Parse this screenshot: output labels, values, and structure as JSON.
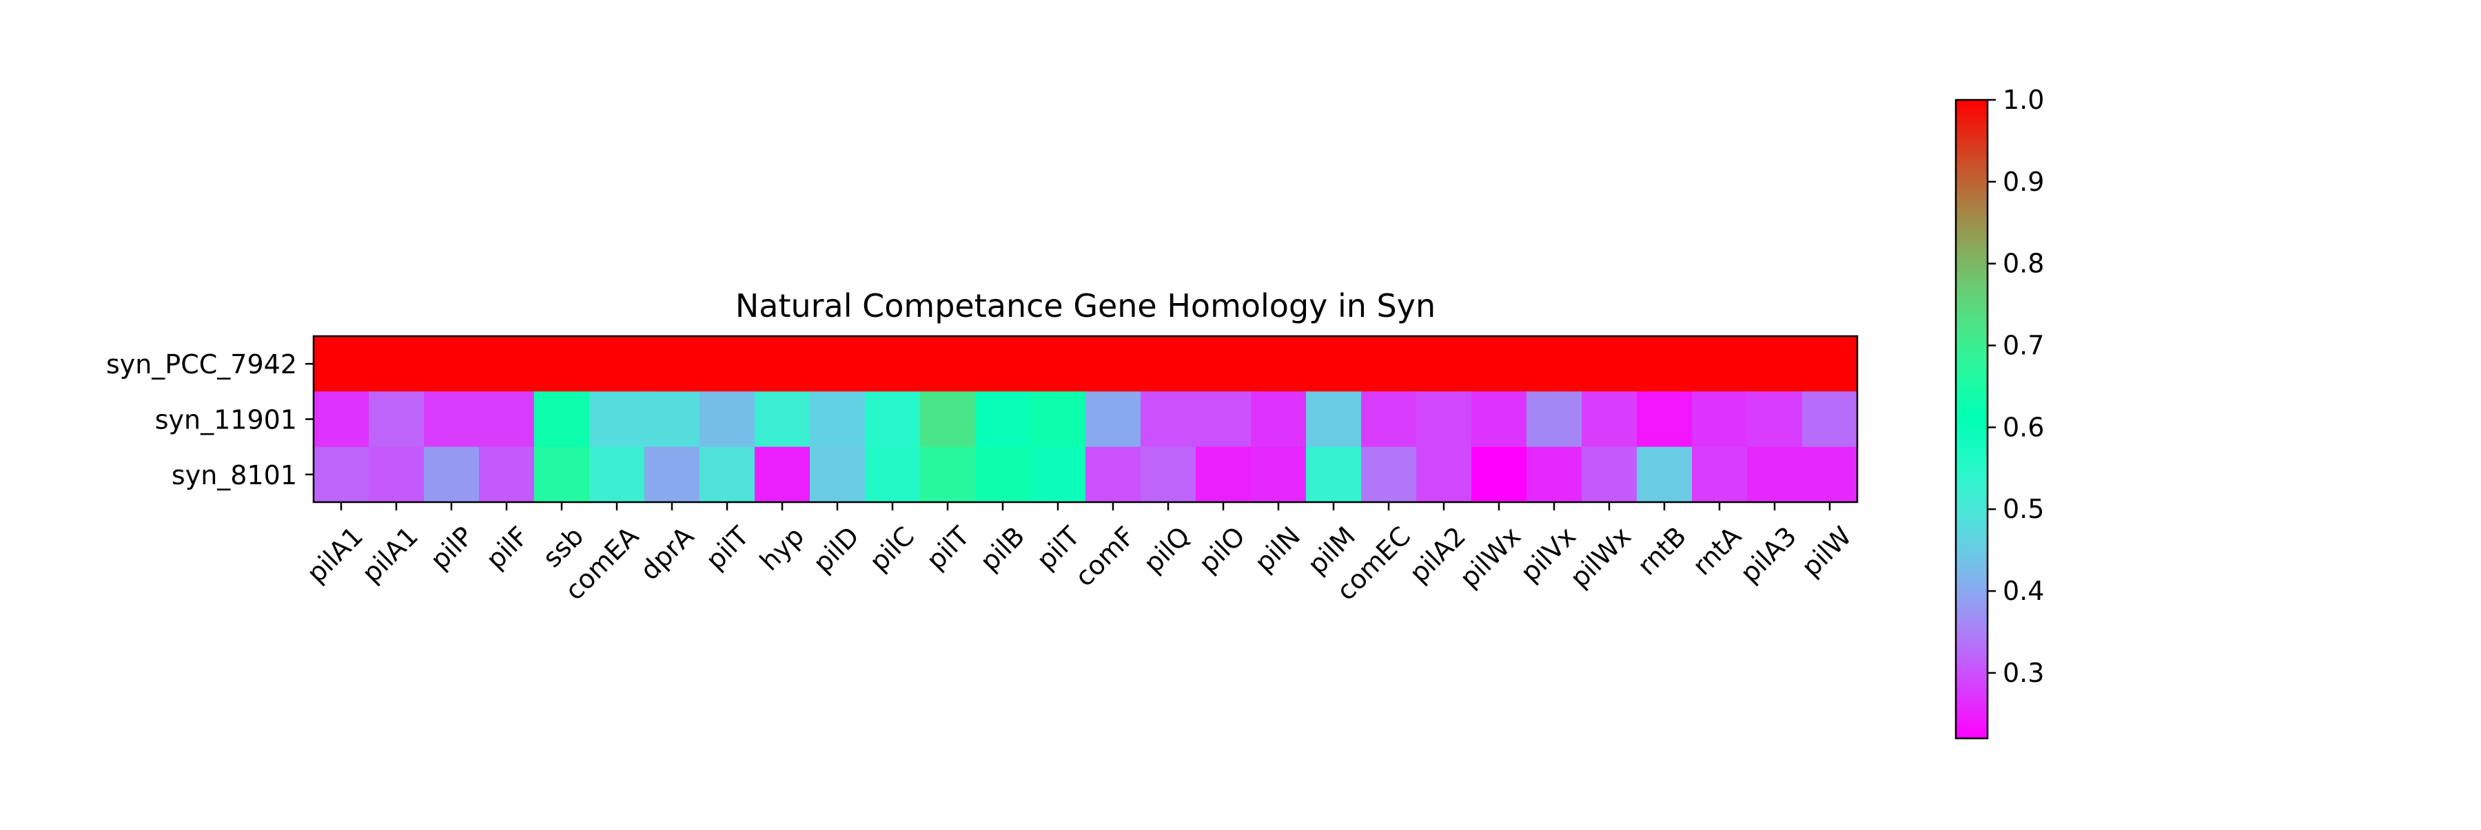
{
  "chart_data": {
    "type": "heatmap",
    "title": "Natural Competance Gene Homology in Syn",
    "xlabel": "",
    "ylabel": "",
    "rows": [
      "syn_PCC_7942",
      "syn_11901",
      "syn_8101"
    ],
    "columns": [
      "pilA1",
      "pilA1",
      "pilP",
      "pilF",
      "ssb",
      "comEA",
      "dprA",
      "pilT",
      "hyp",
      "pilD",
      "pilC",
      "pilT",
      "pilB",
      "pilT",
      "comF",
      "pilQ",
      "pilO",
      "pilN",
      "pilM",
      "comEC",
      "pilA2",
      "pilWx",
      "pilVx",
      "pilWx",
      "rntB",
      "rntA",
      "pilA3",
      "pilW"
    ],
    "values": [
      [
        1.0,
        1.0,
        1.0,
        1.0,
        1.0,
        1.0,
        1.0,
        1.0,
        1.0,
        1.0,
        1.0,
        1.0,
        1.0,
        1.0,
        1.0,
        1.0,
        1.0,
        1.0,
        1.0,
        1.0,
        1.0,
        1.0,
        1.0,
        1.0,
        1.0,
        1.0,
        1.0,
        1.0
      ],
      [
        0.27,
        0.32,
        0.28,
        0.28,
        0.63,
        0.48,
        0.48,
        0.43,
        0.52,
        0.46,
        0.55,
        0.72,
        0.6,
        0.63,
        0.4,
        0.3,
        0.3,
        0.27,
        0.45,
        0.28,
        0.29,
        0.27,
        0.36,
        0.28,
        0.24,
        0.27,
        0.28,
        0.33
      ],
      [
        0.32,
        0.31,
        0.38,
        0.31,
        0.66,
        0.52,
        0.4,
        0.49,
        0.25,
        0.45,
        0.56,
        0.67,
        0.63,
        0.59,
        0.3,
        0.32,
        0.25,
        0.26,
        0.53,
        0.34,
        0.29,
        0.22,
        0.26,
        0.31,
        0.45,
        0.28,
        0.26,
        0.26
      ]
    ],
    "colorscale": "rainbow",
    "colorbar": {
      "min": 0.22,
      "max": 1.0,
      "ticks": [
        0.3,
        0.4,
        0.5,
        0.6,
        0.7,
        0.8,
        0.9,
        1.0
      ],
      "tick_labels": [
        "0.3",
        "0.4",
        "0.5",
        "0.6",
        "0.7",
        "0.8",
        "0.9",
        "1.0"
      ]
    }
  }
}
